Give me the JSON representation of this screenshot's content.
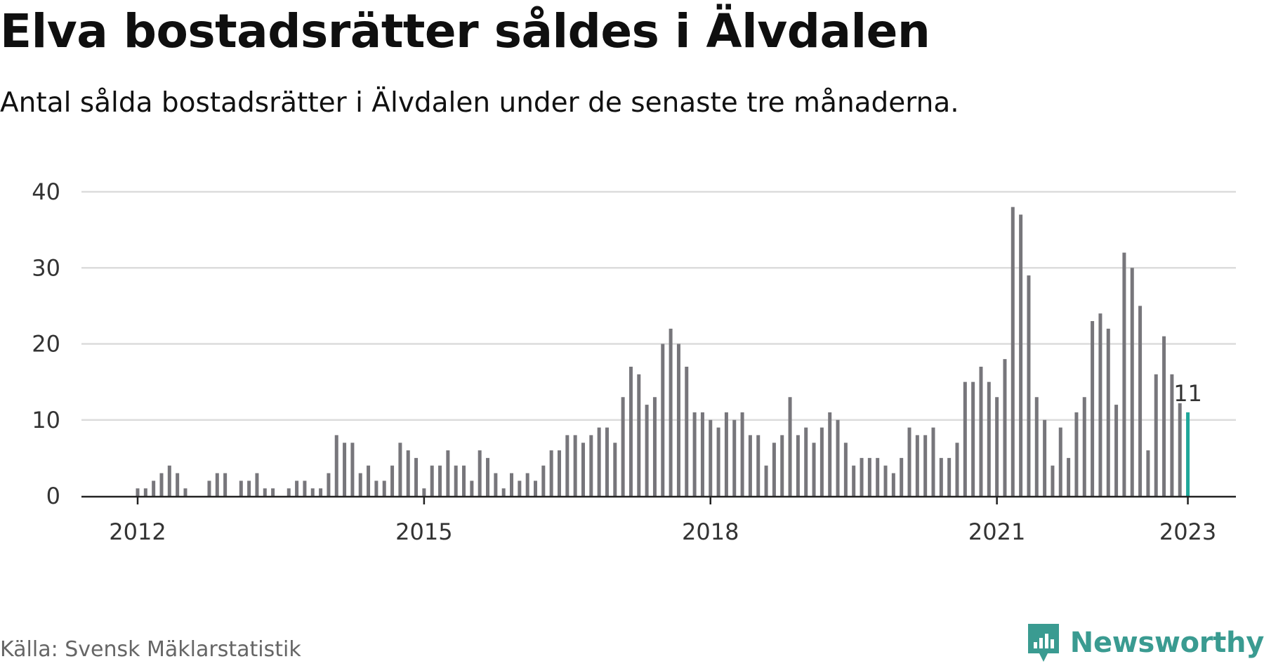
{
  "title": "Elva bostadsrätter såldes i Älvdalen",
  "subtitle": "Antal sålda bostadsrätter i Älvdalen under de senaste tre månaderna.",
  "source": "Källa: Svensk Mäklarstatistik",
  "brand": {
    "name": "Newsworthy",
    "color": "#3a9b91",
    "icon": "newsworthy-logo-icon"
  },
  "colors": {
    "bar": "#77767b",
    "highlight": "#1fa79a",
    "grid": "#dcdcdc",
    "axis": "#222222"
  },
  "chart_data": {
    "type": "bar",
    "xlabel": "",
    "ylabel": "",
    "ylim": [
      0,
      40
    ],
    "yticks": [
      0,
      10,
      20,
      30,
      40
    ],
    "xtick_labels": [
      "2012",
      "2015",
      "2018",
      "2021",
      "2023"
    ],
    "x": [
      "2012-01",
      "2012-02",
      "2012-03",
      "2012-04",
      "2012-05",
      "2012-06",
      "2012-07",
      "2012-08",
      "2012-09",
      "2012-10",
      "2012-11",
      "2012-12",
      "2013-01",
      "2013-02",
      "2013-03",
      "2013-04",
      "2013-05",
      "2013-06",
      "2013-07",
      "2013-08",
      "2013-09",
      "2013-10",
      "2013-11",
      "2013-12",
      "2014-01",
      "2014-02",
      "2014-03",
      "2014-04",
      "2014-05",
      "2014-06",
      "2014-07",
      "2014-08",
      "2014-09",
      "2014-10",
      "2014-11",
      "2014-12",
      "2015-01",
      "2015-02",
      "2015-03",
      "2015-04",
      "2015-05",
      "2015-06",
      "2015-07",
      "2015-08",
      "2015-09",
      "2015-10",
      "2015-11",
      "2015-12",
      "2016-01",
      "2016-02",
      "2016-03",
      "2016-04",
      "2016-05",
      "2016-06",
      "2016-07",
      "2016-08",
      "2016-09",
      "2016-10",
      "2016-11",
      "2016-12",
      "2017-01",
      "2017-02",
      "2017-03",
      "2017-04",
      "2017-05",
      "2017-06",
      "2017-07",
      "2017-08",
      "2017-09",
      "2017-10",
      "2017-11",
      "2017-12",
      "2018-01",
      "2018-02",
      "2018-03",
      "2018-04",
      "2018-05",
      "2018-06",
      "2018-07",
      "2018-08",
      "2018-09",
      "2018-10",
      "2018-11",
      "2018-12",
      "2019-01",
      "2019-02",
      "2019-03",
      "2019-04",
      "2019-05",
      "2019-06",
      "2019-07",
      "2019-08",
      "2019-09",
      "2019-10",
      "2019-11",
      "2019-12",
      "2020-01",
      "2020-02",
      "2020-03",
      "2020-04",
      "2020-05",
      "2020-06",
      "2020-07",
      "2020-08",
      "2020-09",
      "2020-10",
      "2020-11",
      "2020-12",
      "2021-01",
      "2021-02",
      "2021-03",
      "2021-04",
      "2021-05",
      "2021-06",
      "2021-07",
      "2021-08",
      "2021-09",
      "2021-10",
      "2021-11",
      "2021-12",
      "2022-01",
      "2022-02",
      "2022-03",
      "2022-04",
      "2022-05",
      "2022-06",
      "2022-07",
      "2022-08",
      "2022-09",
      "2022-10",
      "2022-11",
      "2022-12",
      "2023-01"
    ],
    "values": [
      1,
      1,
      2,
      3,
      4,
      3,
      1,
      0,
      0,
      2,
      3,
      3,
      0,
      2,
      2,
      3,
      1,
      1,
      0,
      1,
      2,
      2,
      1,
      1,
      3,
      8,
      7,
      7,
      3,
      4,
      2,
      2,
      4,
      7,
      6,
      5,
      1,
      4,
      4,
      6,
      4,
      4,
      2,
      6,
      5,
      3,
      1,
      3,
      2,
      3,
      2,
      4,
      6,
      6,
      8,
      8,
      7,
      8,
      9,
      9,
      7,
      13,
      17,
      16,
      12,
      13,
      20,
      22,
      20,
      17,
      11,
      11,
      10,
      9,
      11,
      10,
      11,
      8,
      8,
      4,
      7,
      8,
      13,
      8,
      9,
      7,
      9,
      11,
      10,
      7,
      4,
      5,
      5,
      5,
      4,
      3,
      5,
      9,
      8,
      8,
      9,
      5,
      5,
      7,
      15,
      15,
      17,
      15,
      13,
      18,
      38,
      37,
      29,
      13,
      10,
      4,
      9,
      5,
      11,
      13,
      23,
      24,
      22,
      12,
      32,
      30,
      25,
      6,
      16,
      21,
      16,
      13,
      11
    ],
    "highlight_index": 132,
    "highlight_label": "11",
    "grid": true,
    "legend": "none"
  }
}
